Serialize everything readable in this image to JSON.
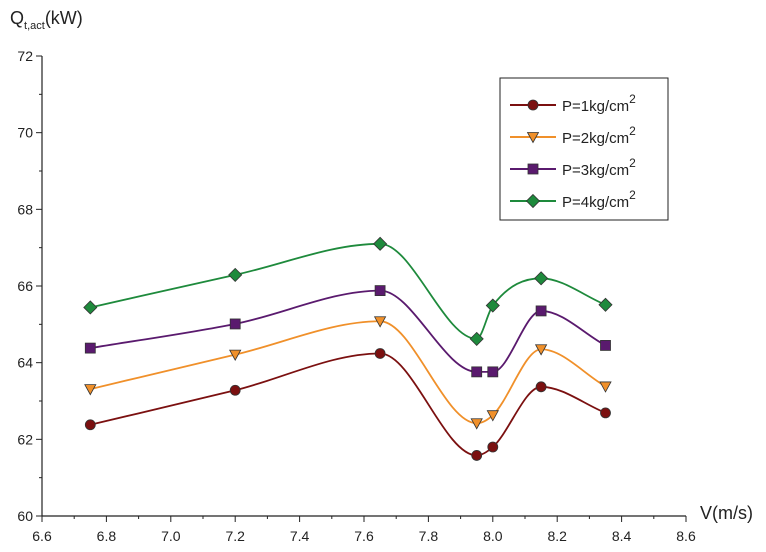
{
  "chart_data": {
    "type": "line",
    "title": "",
    "ylabel_main": "Q",
    "ylabel_sub": "t,act",
    "ylabel_unit": "(kW)",
    "xlabel": "V(m/s)",
    "xlim": [
      6.6,
      8.6
    ],
    "ylim": [
      60,
      72
    ],
    "xticks": [
      "6.6",
      "6.8",
      "7.0",
      "7.2",
      "7.4",
      "7.6",
      "7.8",
      "8.0",
      "8.2",
      "8.4",
      "8.6"
    ],
    "yticks": [
      "60",
      "62",
      "64",
      "66",
      "68",
      "70",
      "72"
    ],
    "grid": false,
    "legend_position": "top-right",
    "x": [
      6.75,
      7.2,
      7.65,
      7.95,
      8.0,
      8.15,
      8.35
    ],
    "series": [
      {
        "name": "P=1kg/cm",
        "sup": "2",
        "marker": "circle",
        "color": "#7b1010",
        "values": [
          62.38,
          63.28,
          64.24,
          61.58,
          61.8,
          63.37,
          62.69
        ]
      },
      {
        "name": "P=2kg/cm",
        "sup": "2",
        "marker": "triangle-down",
        "color": "#f0902a",
        "values": [
          63.31,
          64.21,
          65.08,
          62.42,
          62.63,
          64.35,
          63.38
        ]
      },
      {
        "name": "P=3kg/cm",
        "sup": "2",
        "marker": "square",
        "color": "#5a1a6e",
        "values": [
          64.38,
          65.01,
          65.88,
          63.76,
          63.76,
          65.35,
          64.45
        ]
      },
      {
        "name": "P=4kg/cm",
        "sup": "2",
        "marker": "diamond",
        "color": "#1e8a3c",
        "values": [
          65.44,
          66.29,
          67.1,
          64.62,
          65.49,
          66.2,
          65.51
        ]
      }
    ]
  }
}
